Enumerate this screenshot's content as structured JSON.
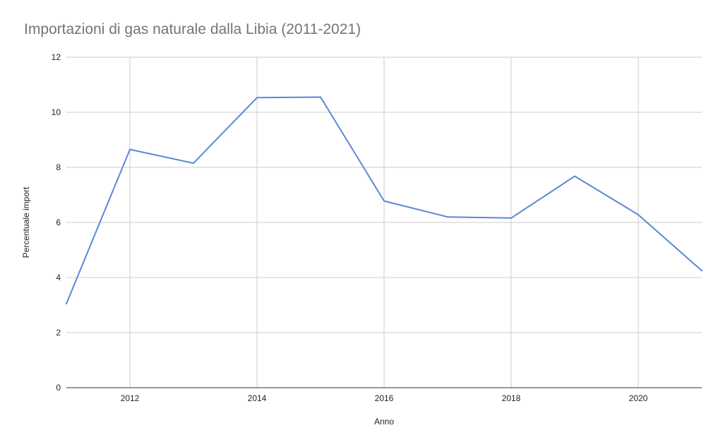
{
  "chart_data": {
    "type": "line",
    "title": "Importazioni di gas naturale dalla Libia (2011-2021)",
    "xlabel": "Anno",
    "ylabel": "Percentuale import",
    "xlim": [
      2011,
      2021
    ],
    "ylim": [
      0,
      12
    ],
    "xticks": [
      2012,
      2014,
      2016,
      2018,
      2020
    ],
    "yticks": [
      0,
      2,
      4,
      6,
      8,
      10,
      12
    ],
    "grid": true,
    "legend": "none",
    "line_color": "#5b87d9",
    "grid_color": "#cccccc",
    "axis_color": "#333333",
    "series": [
      {
        "x": [
          2011,
          2012,
          2013,
          2014,
          2015,
          2016,
          2017,
          2018,
          2019,
          2020,
          2021
        ],
        "values": [
          3.05,
          8.65,
          8.15,
          10.53,
          10.55,
          6.78,
          6.2,
          6.16,
          7.68,
          6.28,
          4.25
        ]
      }
    ]
  }
}
